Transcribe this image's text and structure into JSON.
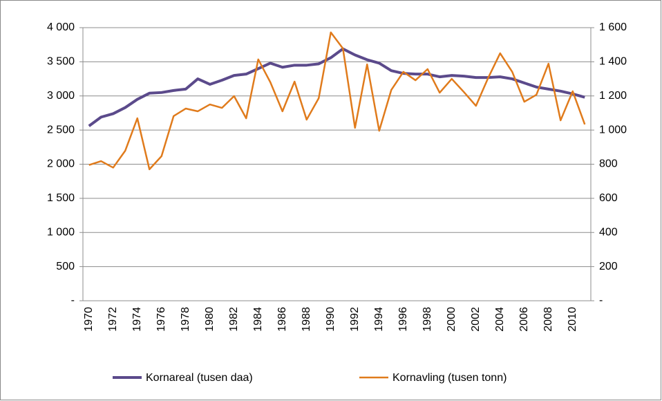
{
  "chart_data": {
    "type": "line",
    "categories": [
      "1970",
      null,
      "1972",
      null,
      "1974",
      null,
      "1976",
      null,
      "1978",
      null,
      "1980",
      null,
      "1982",
      null,
      "1984",
      null,
      "1986",
      null,
      "1988",
      null,
      "1990",
      null,
      "1992",
      null,
      "1994",
      null,
      "1996",
      null,
      "1998",
      null,
      "2000",
      null,
      "2002",
      null,
      "2004",
      null,
      "2006",
      null,
      "2008",
      null,
      "2010",
      null
    ],
    "series": [
      {
        "name": "Kornareal (tusen daa)",
        "color": "#5b4a8b",
        "values": [
          2560,
          2690,
          2740,
          2830,
          2950,
          3040,
          3050,
          3080,
          3100,
          3250,
          3170,
          3230,
          3300,
          3320,
          3400,
          3480,
          3420,
          3450,
          3450,
          3470,
          3560,
          3690,
          3600,
          3530,
          3480,
          3370,
          3330,
          3320,
          3320,
          3280,
          3300,
          3290,
          3270,
          3270,
          3280,
          3250,
          3190,
          3130,
          3100,
          3070,
          3030,
          2980
        ]
      },
      {
        "name": "Kornavling (tusen tonn)",
        "color": "#e07b1c",
        "axis": "y2",
        "values": [
          795,
          818,
          780,
          879,
          1069,
          770,
          847,
          1082,
          1126,
          1110,
          1150,
          1130,
          1199,
          1069,
          1414,
          1280,
          1110,
          1284,
          1061,
          1187,
          1572,
          1478,
          1013,
          1385,
          996,
          1235,
          1341,
          1292,
          1357,
          1219,
          1300,
          1223,
          1142,
          1304,
          1450,
          1341,
          1166,
          1207,
          1389,
          1057,
          1227,
          1033
        ]
      }
    ],
    "ylim": [
      0,
      4000
    ],
    "yticks": [
      {
        "value": 0,
        "label": "-"
      },
      500,
      {
        "value": 1000,
        "label": "1 000"
      },
      {
        "value": 1500,
        "label": "1 500"
      },
      {
        "value": 2000,
        "label": "2 000"
      },
      {
        "value": 2500,
        "label": "2 500"
      },
      {
        "value": 3000,
        "label": "3 000"
      },
      {
        "value": 3500,
        "label": "3 500"
      },
      {
        "value": 4000,
        "label": "4 000"
      }
    ],
    "y2lim": [
      0,
      1600
    ],
    "y2ticks": [
      {
        "value": 0,
        "label": "-"
      },
      200,
      400,
      600,
      800,
      {
        "value": 1000,
        "label": "1 000"
      },
      {
        "value": 1200,
        "label": "1 200"
      },
      {
        "value": 1400,
        "label": "1 400"
      },
      {
        "value": 1600,
        "label": "1 600"
      }
    ],
    "grid": true,
    "legend": "bottom"
  }
}
